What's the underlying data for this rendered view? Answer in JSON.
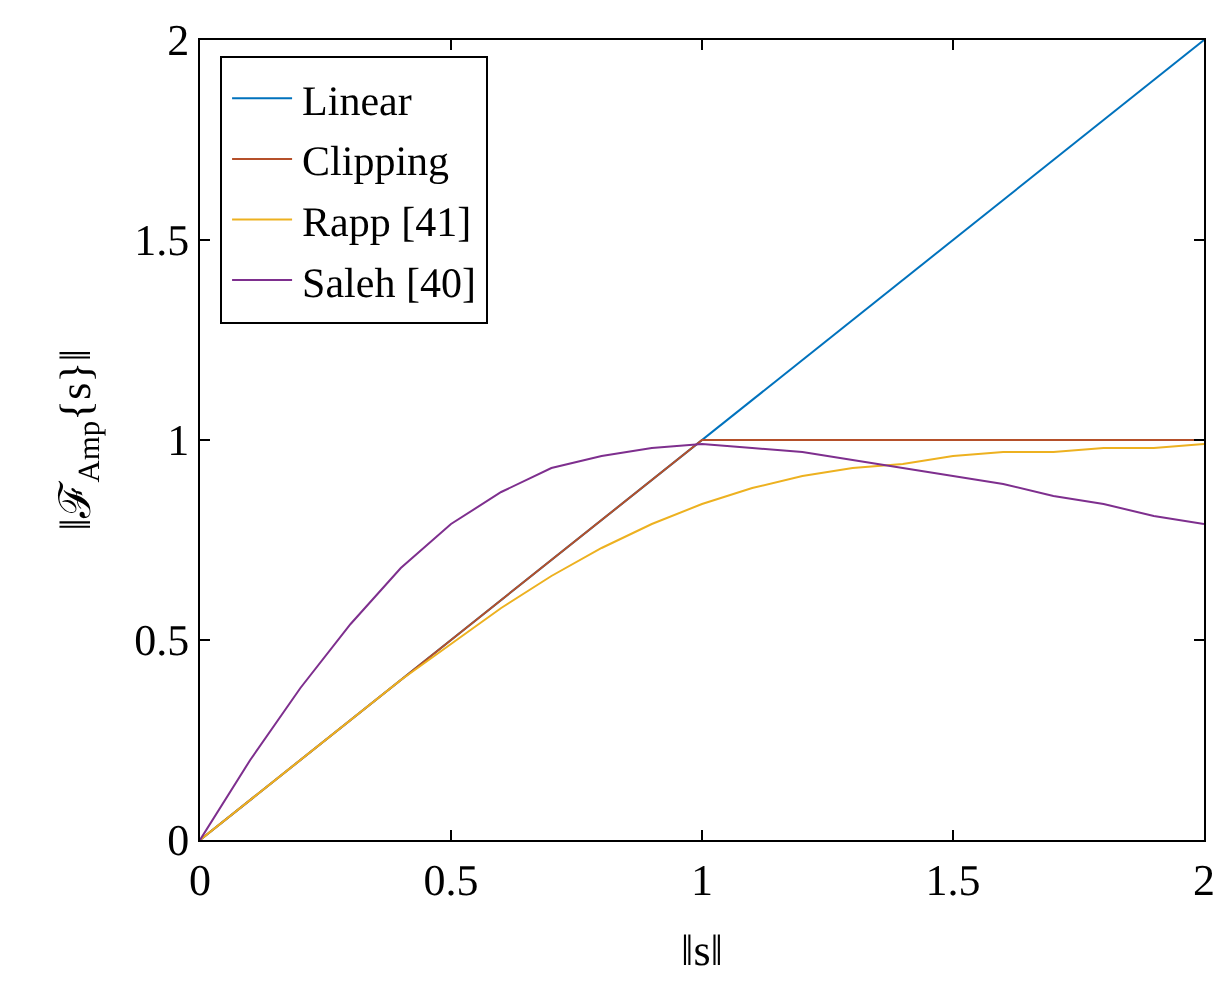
{
  "chart_data": {
    "type": "line",
    "xlabel": "‖s‖",
    "ylabel": "‖ℱ$_{Amp}${s}‖",
    "xlim": [
      0,
      2
    ],
    "ylim": [
      0,
      2
    ],
    "xticks": [
      0,
      0.5,
      1,
      1.5,
      2
    ],
    "yticks": [
      0,
      0.5,
      1,
      1.5,
      2
    ],
    "legend": "top left",
    "marker": "none",
    "line_style": "solid",
    "series": [
      {
        "name": "Linear",
        "color": "#0072bd",
        "x": [
          0,
          2
        ],
        "values": [
          0,
          2
        ]
      },
      {
        "name": "Clipping",
        "color": "#b5502a",
        "x": [
          0,
          1,
          2
        ],
        "values": [
          0,
          1,
          1
        ]
      },
      {
        "name": "Rapp [41]",
        "color": "#edb120",
        "x": [
          0,
          0.1,
          0.2,
          0.3,
          0.4,
          0.5,
          0.6,
          0.7,
          0.8,
          0.9,
          1.0,
          1.1,
          1.2,
          1.3,
          1.4,
          1.5,
          1.6,
          1.7,
          1.8,
          1.9,
          2.0
        ],
        "values": [
          0,
          0.1,
          0.2,
          0.3,
          0.4,
          0.49,
          0.58,
          0.66,
          0.73,
          0.79,
          0.84,
          0.88,
          0.91,
          0.93,
          0.94,
          0.96,
          0.97,
          0.97,
          0.98,
          0.98,
          0.99
        ]
      },
      {
        "name": "Saleh [40]",
        "color": "#7e2f8e",
        "x": [
          0,
          0.1,
          0.2,
          0.3,
          0.4,
          0.5,
          0.6,
          0.7,
          0.8,
          0.9,
          1.0,
          1.1,
          1.2,
          1.3,
          1.4,
          1.5,
          1.6,
          1.7,
          1.8,
          1.9,
          2.0
        ],
        "values": [
          0,
          0.2,
          0.38,
          0.54,
          0.68,
          0.79,
          0.87,
          0.93,
          0.96,
          0.98,
          0.99,
          0.98,
          0.97,
          0.95,
          0.93,
          0.91,
          0.89,
          0.86,
          0.84,
          0.81,
          0.79
        ]
      }
    ]
  }
}
